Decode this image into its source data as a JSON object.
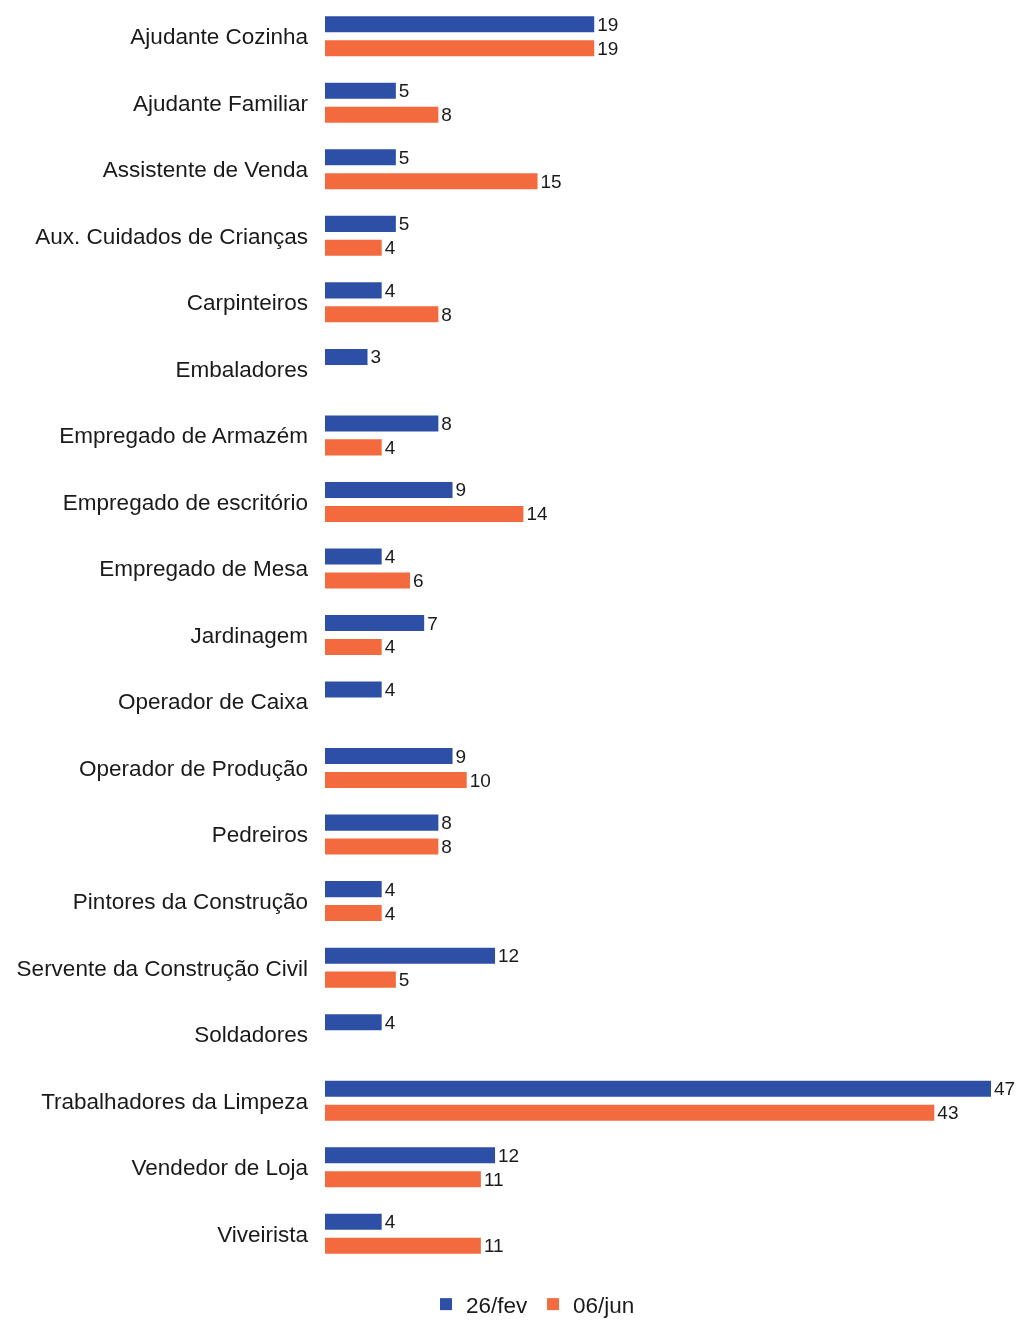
{
  "chart_data": {
    "type": "bar",
    "orientation": "horizontal",
    "categories": [
      "Ajudante Cozinha",
      "Ajudante Familiar",
      "Assistente de Venda",
      "Aux. Cuidados de Crianças",
      "Carpinteiros",
      "Embaladores",
      "Empregado de Armazém",
      "Empregado de escritório",
      "Empregado de Mesa",
      "Jardinagem",
      "Operador de Caixa",
      "Operador de Produção",
      "Pedreiros",
      "Pintores da Construção",
      "Servente da Construção Civil",
      "Soldadores",
      "Trabalhadores da Limpeza",
      "Vendedor de Loja",
      "Viveirista"
    ],
    "series": [
      {
        "name": "26/fev",
        "color": "#2d4fa6",
        "values": [
          19,
          5,
          5,
          5,
          4,
          3,
          8,
          9,
          4,
          7,
          4,
          9,
          8,
          4,
          12,
          4,
          47,
          12,
          4
        ]
      },
      {
        "name": "06/jun",
        "color": "#f36a3e",
        "values": [
          19,
          8,
          15,
          4,
          8,
          null,
          4,
          14,
          6,
          4,
          null,
          10,
          8,
          4,
          5,
          null,
          43,
          11,
          11
        ]
      }
    ],
    "xlim": [
      0,
      47
    ],
    "data_labels": true,
    "legend": "bottom"
  }
}
